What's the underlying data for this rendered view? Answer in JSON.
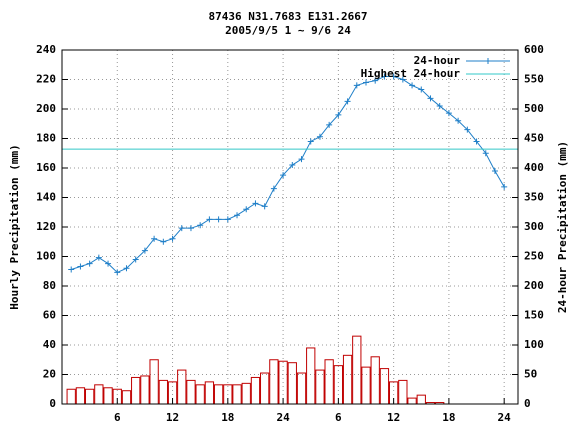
{
  "chart_data": {
    "type": "bar-line",
    "title": "87436 N31.7683 E131.2667",
    "subtitle": "2005/9/5 1 ~ 9/6 24",
    "y_label": "Hourly Precipitation (mm)",
    "y2_label": "24-hour Precipitation (mm)",
    "x": [
      1,
      2,
      3,
      4,
      5,
      6,
      7,
      8,
      9,
      10,
      11,
      12,
      13,
      14,
      15,
      16,
      17,
      18,
      19,
      20,
      21,
      22,
      23,
      24,
      25,
      26,
      27,
      28,
      29,
      30,
      31,
      32,
      33,
      34,
      35,
      36,
      37,
      38,
      39,
      40,
      41,
      42,
      43,
      44,
      45,
      46,
      47,
      48
    ],
    "xlim": [
      0,
      49.5
    ],
    "xticks": [
      6,
      12,
      18,
      24,
      {
        "value": 30,
        "label": "6"
      },
      {
        "value": 36,
        "label": "12"
      },
      {
        "value": 42,
        "label": "18"
      },
      {
        "value": 48,
        "label": "24"
      }
    ],
    "ylim": [
      0,
      240
    ],
    "yticks": [
      0,
      20,
      40,
      60,
      80,
      100,
      120,
      140,
      160,
      180,
      200,
      220,
      240
    ],
    "y2lim": [
      0,
      600
    ],
    "y2ticks": [
      0,
      50,
      100,
      150,
      200,
      250,
      300,
      350,
      400,
      450,
      500,
      550,
      600
    ],
    "grid": true,
    "legend": "top-right",
    "bars": {
      "color": "#c00000",
      "values": [
        10,
        11,
        10,
        13,
        11,
        10,
        9,
        18,
        19,
        30,
        16,
        15,
        23,
        16,
        13,
        15,
        13,
        13,
        13,
        14,
        18,
        21,
        30,
        29,
        28,
        21,
        38,
        23,
        30,
        26,
        33,
        46,
        25,
        32,
        24,
        15,
        16,
        4,
        6,
        1,
        1,
        0,
        0,
        0,
        0,
        0,
        0,
        0
      ]
    },
    "series": [
      {
        "name": "24-hour",
        "color": "#1f7fc8",
        "axis": "y2",
        "values": [
          228,
          233,
          238,
          248,
          238,
          223,
          230,
          245,
          260,
          280,
          275,
          280,
          298,
          298,
          303,
          313,
          313,
          313,
          320,
          330,
          340,
          335,
          365,
          388,
          405,
          415,
          445,
          453,
          473,
          490,
          513,
          540,
          545,
          548,
          555,
          555,
          550,
          540,
          533,
          518,
          505,
          493,
          480,
          465,
          445,
          425,
          395,
          368
        ]
      },
      {
        "name": "Highest 24-hour",
        "color": "#30c8c8",
        "axis": "y2",
        "value": 432
      }
    ]
  }
}
